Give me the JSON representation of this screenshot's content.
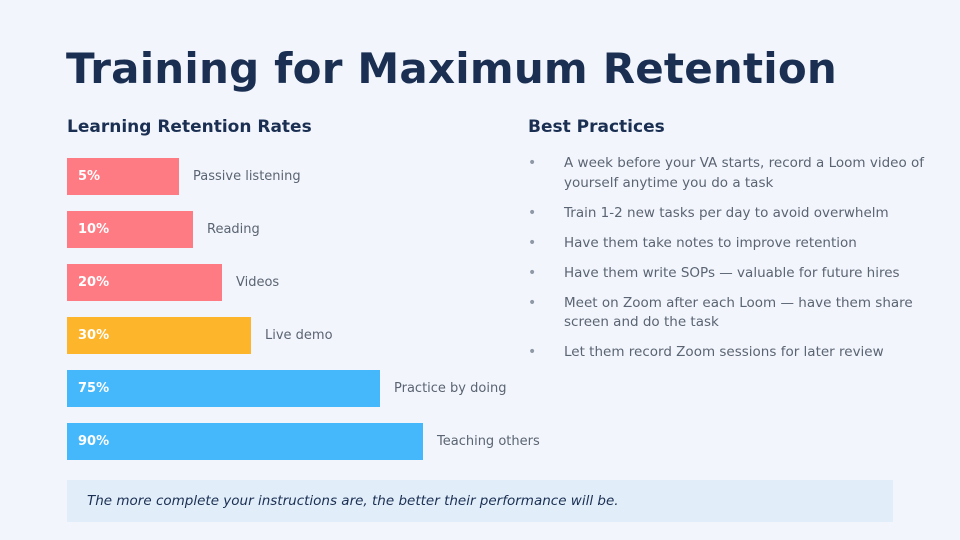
{
  "title": "Training for Maximum Retention",
  "left_heading": "Learning Retention Rates",
  "right_heading": "Best Practices",
  "chart_data": {
    "type": "bar",
    "orientation": "horizontal",
    "categories": [
      "Passive listening",
      "Reading",
      "Videos",
      "Live demo",
      "Practice by doing",
      "Teaching others"
    ],
    "values": [
      5,
      10,
      20,
      30,
      75,
      90
    ],
    "value_labels": [
      "5%",
      "10%",
      "20%",
      "30%",
      "75%",
      "90%"
    ],
    "bar_colors": [
      "#ff7b84",
      "#ff7b84",
      "#ff7b84",
      "#fdb52c",
      "#45b8fc",
      "#45b8fc"
    ],
    "title": "Learning Retention Rates",
    "xlabel": "",
    "ylabel": "",
    "grid": false
  },
  "best_practices": [
    "A week before your VA starts, record a Loom video of yourself anytime you do a task",
    "Train 1-2 new tasks per day to avoid overwhelm",
    "Have them take notes to improve retention",
    "Have them write SOPs — valuable for future hires",
    "Meet on Zoom after each Loom — have them share screen and do the task",
    "Let them record Zoom sessions for later review"
  ],
  "bullet_glyph": "•",
  "callout": "The more complete your instructions are, the better their performance will be.",
  "colors": {
    "background": "#f2f6fc",
    "heading": "#1b2f52",
    "body_text": "#5b6472",
    "callout_bg": "#e1eefa"
  }
}
